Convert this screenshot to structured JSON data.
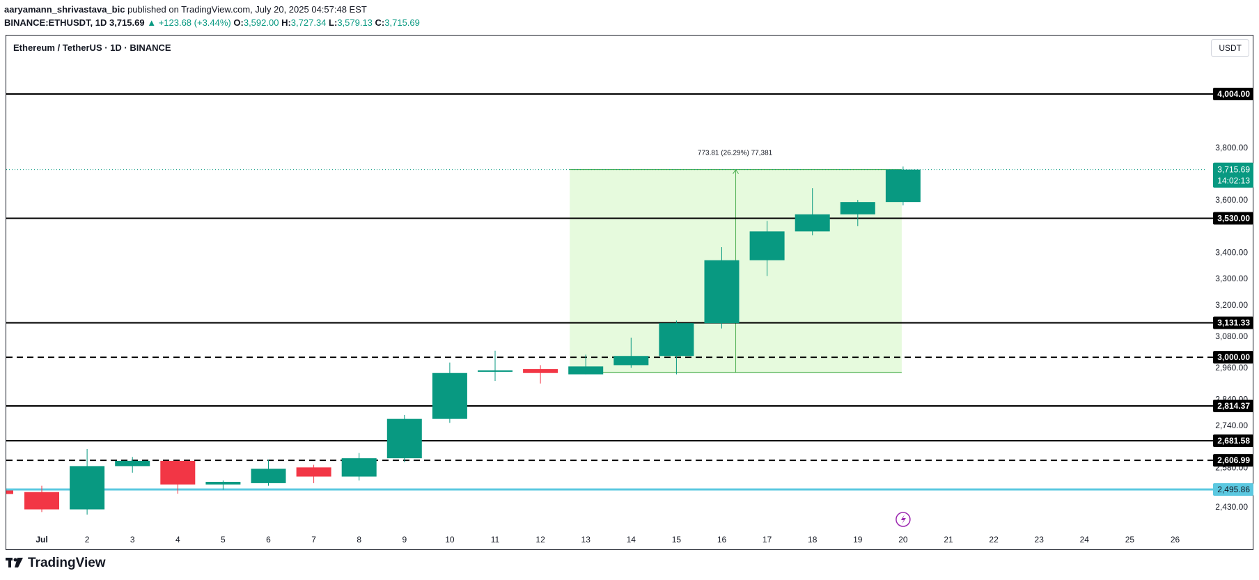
{
  "header": {
    "author": "aaryamann_shrivastava_bic",
    "published_text": "published on TradingView.com, July 20, 2025 04:57:48 EST",
    "symbol_line": "BINANCE:ETHUSDT, 1D",
    "last": "3,715.69",
    "change": "▲ +123.68 (+3.44%)",
    "o_label": "O:",
    "o": "3,592.00",
    "h_label": "H:",
    "h": "3,727.34",
    "l_label": "L:",
    "l": "3,579.13",
    "c_label": "C:",
    "c": "3,715.69"
  },
  "chart_title": "Ethereum / TetherUS · 1D · BINANCE",
  "currency_button": "USDT",
  "footer_logo": "TradingView",
  "colors": {
    "up": "#089981",
    "down": "#f23645",
    "measure": "#4caf50",
    "blue_line": "#5bc8e0"
  },
  "chart_data": {
    "type": "candlestick",
    "x": [
      "Jul",
      "2",
      "3",
      "4",
      "5",
      "6",
      "7",
      "8",
      "9",
      "10",
      "11",
      "12",
      "13",
      "14",
      "15",
      "16",
      "17",
      "18",
      "19",
      "20",
      "21",
      "22",
      "23",
      "24",
      "25",
      "26"
    ],
    "candles": [
      {
        "day": "Jul",
        "o": 2486,
        "h": 2510,
        "l": 2410,
        "c": 2420
      },
      {
        "day": "2",
        "o": 2420,
        "h": 2650,
        "l": 2400,
        "c": 2585
      },
      {
        "day": "3",
        "o": 2585,
        "h": 2620,
        "l": 2560,
        "c": 2605
      },
      {
        "day": "4",
        "o": 2605,
        "h": 2605,
        "l": 2480,
        "c": 2515
      },
      {
        "day": "5",
        "o": 2515,
        "h": 2530,
        "l": 2495,
        "c": 2525
      },
      {
        "day": "6",
        "o": 2520,
        "h": 2610,
        "l": 2510,
        "c": 2575
      },
      {
        "day": "7",
        "o": 2580,
        "h": 2590,
        "l": 2520,
        "c": 2545
      },
      {
        "day": "8",
        "o": 2545,
        "h": 2635,
        "l": 2530,
        "c": 2615
      },
      {
        "day": "9",
        "o": 2615,
        "h": 2780,
        "l": 2600,
        "c": 2765
      },
      {
        "day": "10",
        "o": 2765,
        "h": 2980,
        "l": 2750,
        "c": 2940
      },
      {
        "day": "11",
        "o": 2945,
        "h": 3025,
        "l": 2910,
        "c": 2950
      },
      {
        "day": "12",
        "o": 2955,
        "h": 2970,
        "l": 2900,
        "c": 2940
      },
      {
        "day": "13",
        "o": 2935,
        "h": 3010,
        "l": 2935,
        "c": 2965
      },
      {
        "day": "14",
        "o": 2970,
        "h": 3075,
        "l": 2960,
        "c": 3005
      },
      {
        "day": "15",
        "o": 3005,
        "h": 3140,
        "l": 2935,
        "c": 3130
      },
      {
        "day": "16",
        "o": 3130,
        "h": 3420,
        "l": 3110,
        "c": 3370
      },
      {
        "day": "17",
        "o": 3370,
        "h": 3520,
        "l": 3310,
        "c": 3480
      },
      {
        "day": "18",
        "o": 3480,
        "h": 3645,
        "l": 3465,
        "c": 3545
      },
      {
        "day": "19",
        "o": 3545,
        "h": 3600,
        "l": 3500,
        "c": 3592
      },
      {
        "day": "20",
        "o": 3592,
        "h": 3727.34,
        "l": 3579.13,
        "c": 3715.69
      }
    ],
    "y_ticks": [
      "3,800.00",
      "3,600.00",
      "3,400.00",
      "3,300.00",
      "3,200.00",
      "3,080.00",
      "2,960.00",
      "2,840.00",
      "2,740.00",
      "2,580.00",
      "2,430.00"
    ],
    "levels": [
      {
        "price": 4004.0,
        "label": "4,004.00",
        "style": "solid"
      },
      {
        "price": 3530.0,
        "label": "3,530.00",
        "style": "solid"
      },
      {
        "price": 3131.33,
        "label": "3,131.33",
        "style": "solid"
      },
      {
        "price": 3000.0,
        "label": "3,000.00",
        "style": "dashed"
      },
      {
        "price": 2814.37,
        "label": "2,814.37",
        "style": "solid"
      },
      {
        "price": 2681.58,
        "label": "2,681.58",
        "style": "solid"
      },
      {
        "price": 2606.99,
        "label": "2,606.99",
        "style": "dashed"
      }
    ],
    "support_line": {
      "price": 2495.86,
      "label": "2,495.86"
    },
    "last_price": {
      "price": 3715.69,
      "label": "3,715.69",
      "countdown": "14:02:13"
    },
    "measure": {
      "from_day": "13",
      "to_day": "20",
      "low": 2941.88,
      "high": 3715.69,
      "label": "773.81 (26.29%) 77,381"
    }
  }
}
